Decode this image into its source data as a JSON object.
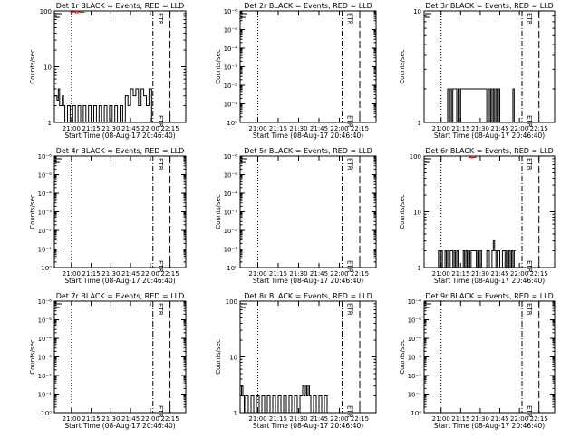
{
  "chart_data": [
    {
      "type": "line",
      "title": "Det 1r BLACK = Events, RED = LLD",
      "xlabel": "Start Time (08-Aug-17 20:46:40)",
      "ylabel": "Counts/sec",
      "ylog": true,
      "ylim": [
        1,
        100
      ],
      "yticks": [
        "1",
        "10",
        "100"
      ],
      "xlim_minutes": [
        0,
        100
      ],
      "xticks": [
        "21:00",
        "21:15",
        "21:30",
        "21:45",
        "22:00",
        "22:15"
      ],
      "series": [
        {
          "color": "#000000",
          "x": [
            0,
            2,
            3,
            4,
            6,
            7,
            8,
            10,
            12,
            14,
            16,
            18,
            20,
            22,
            24,
            26,
            28,
            30,
            32,
            34,
            36,
            38,
            40,
            42,
            44,
            46,
            48,
            50,
            52,
            54,
            56,
            58,
            60,
            62,
            64,
            66,
            68,
            70,
            72,
            74
          ],
          "y": [
            3,
            2.5,
            4,
            2,
            3,
            2,
            1,
            2,
            1,
            2,
            1,
            2,
            1,
            2,
            1,
            2,
            1,
            2,
            1,
            2,
            1,
            2,
            1,
            2,
            1,
            2,
            1,
            2,
            1,
            3,
            2,
            4,
            3,
            4,
            2,
            4,
            3,
            2,
            4,
            1
          ]
        },
        {
          "color": "#ff0000",
          "x": [
            12,
            14,
            16,
            18,
            20,
            22
          ],
          "y": [
            95,
            97,
            93,
            96,
            94,
            95
          ]
        }
      ],
      "annotations": [
        "ETR"
      ]
    },
    {
      "type": "line",
      "title": "Det 2r BLACK = Events, RED = LLD",
      "xlabel": "Start Time (08-Aug-17 20:46:40)",
      "ylabel": "Counts/sec",
      "ylog": true,
      "ylim": [
        1,
        1000000
      ],
      "yticks": [
        "10⁰",
        "10⁻¹",
        "10⁻²",
        "10⁻³",
        "10⁻⁴",
        "10⁻⁵",
        "10⁻⁶"
      ],
      "xlim_minutes": [
        0,
        100
      ],
      "xticks": [
        "21:00",
        "21:15",
        "21:30",
        "21:45",
        "22:00",
        "22:15"
      ],
      "series": [],
      "annotations": [
        "ETR"
      ]
    },
    {
      "type": "line",
      "title": "Det 3r BLACK = Events, RED = LLD",
      "xlabel": "Start Time (08-Aug-17 20:46:40)",
      "ylabel": "Counts/sec",
      "ylog": true,
      "ylim": [
        1,
        10
      ],
      "yticks": [
        "1",
        "10"
      ],
      "xlim_minutes": [
        0,
        100
      ],
      "xticks": [
        "21:00",
        "21:15",
        "21:30",
        "21:45",
        "22:00",
        "22:15"
      ],
      "series": [
        {
          "color": "#000000",
          "x": [
            17,
            18,
            19,
            20,
            21,
            22,
            25,
            26,
            27,
            28,
            48,
            49,
            50,
            51,
            52,
            53,
            54,
            55,
            56,
            57,
            58,
            68,
            69
          ],
          "y": [
            1,
            2,
            1,
            2,
            1,
            2,
            1,
            2,
            1,
            2,
            1,
            2,
            1,
            2,
            1,
            2,
            1,
            2,
            1,
            2,
            1,
            2,
            1
          ]
        }
      ],
      "annotations": [
        "ETR"
      ]
    },
    {
      "type": "line",
      "title": "Det 4r BLACK = Events, RED = LLD",
      "xlabel": "Start Time (08-Aug-17 20:46:40)",
      "ylabel": "Counts/sec",
      "ylog": true,
      "ylim": [
        1,
        1000000
      ],
      "yticks": [
        "10⁰",
        "10⁻¹",
        "10⁻²",
        "10⁻³",
        "10⁻⁴",
        "10⁻⁵",
        "10⁻⁶"
      ],
      "xlim_minutes": [
        0,
        100
      ],
      "xticks": [
        "21:00",
        "21:15",
        "21:30",
        "21:45",
        "22:00",
        "22:15"
      ],
      "series": [],
      "annotations": [
        "ETR"
      ]
    },
    {
      "type": "line",
      "title": "Det 5r BLACK = Events, RED = LLD",
      "xlabel": "Start Time (08-Aug-17 20:46:40)",
      "ylabel": "Counts/sec",
      "ylog": true,
      "ylim": [
        1,
        1000000
      ],
      "yticks": [
        "10⁰",
        "10⁻¹",
        "10⁻²",
        "10⁻³",
        "10⁻⁴",
        "10⁻⁵",
        "10⁻⁶"
      ],
      "xlim_minutes": [
        0,
        100
      ],
      "xticks": [
        "21:00",
        "21:15",
        "21:30",
        "21:45",
        "22:00",
        "22:15"
      ],
      "series": [],
      "annotations": [
        "ETR"
      ]
    },
    {
      "type": "line",
      "title": "Det 6r BLACK = Events, RED = LLD",
      "xlabel": "Start Time (08-Aug-17 20:46:40)",
      "ylabel": "Counts/sec",
      "ylog": true,
      "ylim": [
        1,
        100
      ],
      "yticks": [
        "1",
        "10",
        "100"
      ],
      "xlim_minutes": [
        0,
        100
      ],
      "xticks": [
        "21:00",
        "21:15",
        "21:30",
        "21:45",
        "22:00",
        "22:15"
      ],
      "series": [
        {
          "color": "#000000",
          "x": [
            10,
            11,
            12,
            13,
            14,
            16,
            17,
            18,
            19,
            20,
            22,
            23,
            24,
            25,
            26,
            30,
            31,
            32,
            33,
            34,
            35,
            36,
            40,
            41,
            42,
            43,
            44,
            48,
            50,
            52,
            53,
            54,
            55,
            56,
            58,
            60,
            62,
            63,
            64,
            65,
            66,
            67,
            68,
            69
          ],
          "y": [
            1,
            2,
            1,
            2,
            1,
            2,
            1,
            2,
            1,
            2,
            1,
            2,
            1,
            2,
            1,
            2,
            1,
            2,
            1,
            2,
            1,
            2,
            1,
            2,
            1,
            2,
            1,
            2,
            1,
            2,
            3,
            2,
            1,
            2,
            1,
            2,
            1,
            2,
            1,
            2,
            1,
            2,
            1,
            2
          ]
        },
        {
          "color": "#ff0000",
          "x": [
            34,
            35,
            36,
            37,
            38,
            39
          ],
          "y": [
            94,
            96,
            93,
            95,
            94,
            96
          ]
        }
      ],
      "annotations": [
        "ETR"
      ]
    },
    {
      "type": "line",
      "title": "Det 7r BLACK = Events, RED = LLD",
      "xlabel": "Start Time (08-Aug-17 20:46:40)",
      "ylabel": "Counts/sec",
      "ylog": true,
      "ylim": [
        1,
        1000000
      ],
      "yticks": [
        "10⁰",
        "10⁻¹",
        "10⁻²",
        "10⁻³",
        "10⁻⁴",
        "10⁻⁵",
        "10⁻⁶"
      ],
      "xlim_minutes": [
        0,
        100
      ],
      "xticks": [
        "21:00",
        "21:15",
        "21:30",
        "21:45",
        "22:00",
        "22:15"
      ],
      "series": [],
      "annotations": [
        "ETR"
      ]
    },
    {
      "type": "line",
      "title": "Det 8r BLACK = Events, RED = LLD",
      "xlabel": "Start Time (08-Aug-17 20:46:40)",
      "ylabel": "Counts/sec",
      "ylog": true,
      "ylim": [
        1,
        100
      ],
      "yticks": [
        "1",
        "10",
        "100"
      ],
      "xlim_minutes": [
        0,
        100
      ],
      "xticks": [
        "21:00",
        "21:15",
        "21:30",
        "21:45",
        "22:00",
        "22:15"
      ],
      "series": [
        {
          "color": "#000000",
          "x": [
            0,
            1,
            2,
            3,
            4,
            6,
            8,
            10,
            12,
            14,
            16,
            18,
            20,
            22,
            24,
            26,
            28,
            30,
            32,
            34,
            36,
            38,
            40,
            42,
            44,
            46,
            47,
            48,
            49,
            50,
            51,
            52,
            54,
            56,
            58,
            60,
            62,
            64
          ],
          "y": [
            2,
            3,
            2,
            1,
            2,
            1,
            2,
            1,
            2,
            1,
            2,
            1,
            2,
            1,
            2,
            1,
            2,
            1,
            2,
            1,
            2,
            1,
            2,
            1,
            2,
            3,
            2,
            3,
            2,
            3,
            2,
            1,
            2,
            1,
            2,
            1,
            2,
            1
          ]
        }
      ],
      "annotations": [
        "ETR"
      ]
    },
    {
      "type": "line",
      "title": "Det 9r BLACK = Events, RED = LLD",
      "xlabel": "Start Time (08-Aug-17 20:46:40)",
      "ylabel": "Counts/sec",
      "ylog": true,
      "ylim": [
        1,
        1000000
      ],
      "yticks": [
        "10⁰",
        "10⁻¹",
        "10⁻²",
        "10⁻³",
        "10⁻⁴",
        "10⁻⁵",
        "10⁻⁶"
      ],
      "xlim_minutes": [
        0,
        100
      ],
      "xticks": [
        "21:00",
        "21:15",
        "21:30",
        "21:45",
        "22:00",
        "22:15"
      ],
      "series": [],
      "annotations": [
        "ETR"
      ]
    }
  ],
  "reference_lines_minutes": {
    "dotted": 13,
    "dashdot": 75,
    "longdash": 88
  },
  "colors": {
    "events": "#000000",
    "lld": "#ff0000",
    "background": "#ffffff"
  }
}
